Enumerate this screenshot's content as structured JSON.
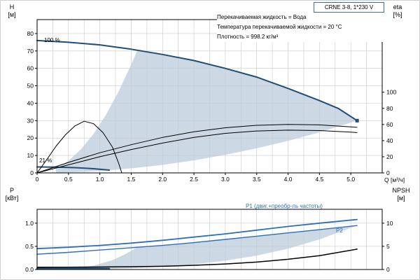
{
  "colors": {
    "curve_blue": "#1f4e79",
    "power_blue": "#2f6fb5",
    "shade": "#ccd9e5",
    "grid": "#c9c9c9",
    "annotation_blue": "#2f6fb5",
    "box_border": "#44699d"
  },
  "header": {
    "model_box": "CRNE 3-8, 1*230 V",
    "info_lines": [
      "Перекачиваемая жидкость = Вода",
      "Температура перекачиваемой жидкости = 20 °C",
      "Плотность = 998.2 кг/м³"
    ]
  },
  "axis_labels": {
    "h": [
      "H",
      "[м]"
    ],
    "eta": [
      "eta",
      "[%]"
    ],
    "p": [
      "P",
      "[кВт]"
    ],
    "npsh": [
      "NPSH",
      "[м]"
    ],
    "q": "Q [м³/ч]"
  },
  "annotations": {
    "speed_100": "100 %",
    "speed_21": "21 %",
    "p1": "P1 (двиг.+преобр-ль частоты)",
    "p2": "P2"
  },
  "chart_data": [
    {
      "type": "line",
      "title": "CRNE 3-8, 1*230 V",
      "xlabel": "Q [м³/ч]",
      "ylabel": "H [м]",
      "y2label": "eta [%]",
      "xlim": [
        0,
        5.5
      ],
      "ylim": [
        0,
        88
      ],
      "y2lim": [
        0,
        190
      ],
      "grid": true,
      "legend": "none",
      "x_minor_step": 0.25,
      "xticks": [
        0,
        0.5,
        1,
        1.5,
        2,
        2.5,
        3,
        3.5,
        4,
        4.5,
        5
      ],
      "xtick_labels": [
        "0",
        "0.5",
        "1.0",
        "1.5",
        "2.0",
        "2.5",
        "3.0",
        "3.5",
        "4.0",
        "4.5",
        "5.0"
      ],
      "yticks": [
        0,
        10,
        20,
        30,
        40,
        50,
        60,
        70,
        80
      ],
      "ytick_labels": [
        "0",
        "10",
        "20",
        "30",
        "40",
        "50",
        "60",
        "70",
        "80"
      ],
      "y2ticks": [
        0,
        20,
        40,
        60,
        80,
        100
      ],
      "y2tick_labels": [
        "0",
        "20",
        "40",
        "60",
        "80",
        "100"
      ],
      "series": [
        {
          "name": "variable-speed operating envelope",
          "kind": "area",
          "axis": "left",
          "color": "#ccd9e5",
          "points": [
            [
              0.3,
              0.1
            ],
            [
              0.3,
              2.5
            ],
            [
              0.5,
              6.9
            ],
            [
              0.7,
              13.6
            ],
            [
              0.9,
              22.4
            ],
            [
              1.1,
              33.5
            ],
            [
              1.3,
              46.8
            ],
            [
              1.5,
              62.3
            ],
            [
              1.6,
              70.5
            ],
            [
              2,
              68
            ],
            [
              2.5,
              64.5
            ],
            [
              3,
              60
            ],
            [
              3.5,
              55
            ],
            [
              4,
              48.5
            ],
            [
              4.5,
              41.5
            ],
            [
              4.8,
              37
            ],
            [
              5.1,
              30
            ],
            [
              4.5,
              23.3
            ],
            [
              4,
              18.4
            ],
            [
              3.5,
              14.1
            ],
            [
              3,
              10.4
            ],
            [
              2.5,
              7.2
            ],
            [
              2,
              4.6
            ],
            [
              1.5,
              2.6
            ],
            [
              1.15,
              1.5
            ],
            [
              0.8,
              0.7
            ],
            [
              0.5,
              0.3
            ],
            [
              0.3,
              0.1
            ]
          ]
        },
        {
          "name": "H-Q curve 100% speed",
          "kind": "line",
          "axis": "left",
          "color": "#1f4e79",
          "width": 2,
          "end_marker": true,
          "points": [
            [
              0,
              76
            ],
            [
              0.5,
              75
            ],
            [
              1,
              73.5
            ],
            [
              1.5,
              71
            ],
            [
              2,
              68
            ],
            [
              2.5,
              64.5
            ],
            [
              3,
              60
            ],
            [
              3.5,
              55
            ],
            [
              4,
              48.5
            ],
            [
              4.5,
              41.5
            ],
            [
              4.8,
              37
            ],
            [
              5.1,
              30
            ]
          ]
        },
        {
          "name": "H-Q curve 21% speed",
          "kind": "line",
          "axis": "left",
          "color": "#1f4e79",
          "width": 2,
          "points": [
            [
              0,
              3.4
            ],
            [
              0.3,
              3.3
            ],
            [
              0.6,
              3
            ],
            [
              0.9,
              2.4
            ],
            [
              1.15,
              1.6
            ]
          ]
        },
        {
          "name": "eta pump",
          "kind": "line",
          "axis": "right",
          "color": "#000000",
          "width": 1,
          "points": [
            [
              0,
              0
            ],
            [
              0.5,
              13
            ],
            [
              1,
              25
            ],
            [
              1.5,
              35
            ],
            [
              2,
              44
            ],
            [
              2.5,
              51
            ],
            [
              3,
              56
            ],
            [
              3.5,
              59
            ],
            [
              4,
              60
            ],
            [
              4.5,
              59.5
            ],
            [
              5,
              57
            ],
            [
              5.1,
              56.5
            ]
          ]
        },
        {
          "name": "eta pump+motor",
          "kind": "line",
          "axis": "right",
          "color": "#000000",
          "width": 1,
          "points": [
            [
              0,
              0
            ],
            [
              0.5,
              10
            ],
            [
              1,
              20
            ],
            [
              1.5,
              29
            ],
            [
              2,
              37
            ],
            [
              2.5,
              44
            ],
            [
              3,
              49
            ],
            [
              3.5,
              52
            ],
            [
              4,
              53
            ],
            [
              4.5,
              52.5
            ],
            [
              5,
              50.5
            ],
            [
              5.1,
              50
            ]
          ]
        },
        {
          "name": "eta 21% speed",
          "kind": "line",
          "axis": "right",
          "color": "#000000",
          "width": 1,
          "points": [
            [
              0,
              0
            ],
            [
              0.15,
              16
            ],
            [
              0.3,
              33
            ],
            [
              0.45,
              47
            ],
            [
              0.6,
              58
            ],
            [
              0.75,
              64
            ],
            [
              0.9,
              61
            ],
            [
              1.05,
              50
            ],
            [
              1.2,
              32
            ],
            [
              1.3,
              12
            ],
            [
              1.35,
              0
            ]
          ]
        }
      ]
    },
    {
      "type": "line",
      "title": "",
      "xlabel": "Q [м³/ч]",
      "ylabel": "P [кВт]",
      "y2label": "NPSH [м]",
      "xlim": [
        0,
        5.5
      ],
      "ylim": [
        0,
        1.3
      ],
      "y2lim": [
        0,
        13
      ],
      "grid": true,
      "legend": "none",
      "x_minor_step": 0.25,
      "xticks": [
        0,
        0.5,
        1,
        1.5,
        2,
        2.5,
        3,
        3.5,
        4,
        4.5,
        5
      ],
      "xtick_labels": [
        "0",
        "0.5",
        "1.0",
        "1.5",
        "2.0",
        "2.5",
        "3.0",
        "3.5",
        "4.0",
        "4.5",
        "5.0"
      ],
      "yticks": [
        0,
        0.5,
        1
      ],
      "ytick_labels": [
        "0.0",
        "0.5",
        "1.0"
      ],
      "y2ticks": [
        0,
        5,
        10
      ],
      "y2tick_labels": [
        "0",
        "5",
        "10"
      ],
      "series": [
        {
          "name": "power operating envelope",
          "kind": "area",
          "axis": "left",
          "color": "#ccd9e5",
          "points": [
            [
              0.35,
              0.005
            ],
            [
              0.6,
              0.025
            ],
            [
              0.9,
              0.085
            ],
            [
              1.2,
              0.2
            ],
            [
              1.4,
              0.33
            ],
            [
              1.6,
              0.48
            ],
            [
              2,
              0.52
            ],
            [
              2.5,
              0.58
            ],
            [
              3,
              0.65
            ],
            [
              3.5,
              0.72
            ],
            [
              4,
              0.79
            ],
            [
              4.5,
              0.86
            ],
            [
              5.1,
              0.95
            ],
            [
              4.5,
              0.65
            ],
            [
              4,
              0.45
            ],
            [
              3.5,
              0.3
            ],
            [
              3,
              0.19
            ],
            [
              2.5,
              0.11
            ],
            [
              2,
              0.06
            ],
            [
              1.5,
              0.025
            ],
            [
              1.15,
              0.011
            ],
            [
              0.9,
              0.008
            ],
            [
              0.6,
              0.006
            ],
            [
              0.35,
              0.005
            ]
          ]
        },
        {
          "name": "P1 motor + frequency converter",
          "kind": "line",
          "axis": "left",
          "color": "#2f6fb5",
          "width": 1.8,
          "points": [
            [
              0,
              0.45
            ],
            [
              0.5,
              0.48
            ],
            [
              1,
              0.52
            ],
            [
              1.5,
              0.57
            ],
            [
              2,
              0.63
            ],
            [
              2.5,
              0.7
            ],
            [
              3,
              0.77
            ],
            [
              3.5,
              0.85
            ],
            [
              4,
              0.93
            ],
            [
              4.5,
              1
            ],
            [
              5.1,
              1.08
            ]
          ]
        },
        {
          "name": "P2 shaft power",
          "kind": "line",
          "axis": "left",
          "color": "#2f6fb5",
          "width": 1.4,
          "points": [
            [
              0,
              0.33
            ],
            [
              0.5,
              0.37
            ],
            [
              1,
              0.42
            ],
            [
              1.5,
              0.47
            ],
            [
              2,
              0.52
            ],
            [
              2.5,
              0.58
            ],
            [
              3,
              0.65
            ],
            [
              3.5,
              0.72
            ],
            [
              4,
              0.79
            ],
            [
              4.5,
              0.86
            ],
            [
              5.1,
              0.95
            ]
          ]
        },
        {
          "name": "NPSH",
          "kind": "line",
          "axis": "right",
          "color": "#000000",
          "width": 1.5,
          "points": [
            [
              0,
              0.5
            ],
            [
              0.5,
              0.5
            ],
            [
              1,
              0.55
            ],
            [
              1.5,
              0.6
            ],
            [
              2,
              0.7
            ],
            [
              2.5,
              0.9
            ],
            [
              3,
              1.2
            ],
            [
              3.5,
              1.6
            ],
            [
              4,
              2.2
            ],
            [
              4.5,
              3
            ],
            [
              5.1,
              4.4
            ]
          ]
        },
        {
          "name": "P 21% speed",
          "kind": "line",
          "axis": "left",
          "color": "#1f4e79",
          "width": 2.5,
          "points": [
            [
              0,
              0.02
            ],
            [
              0.6,
              0.025
            ],
            [
              1.15,
              0.02
            ]
          ]
        }
      ]
    }
  ]
}
